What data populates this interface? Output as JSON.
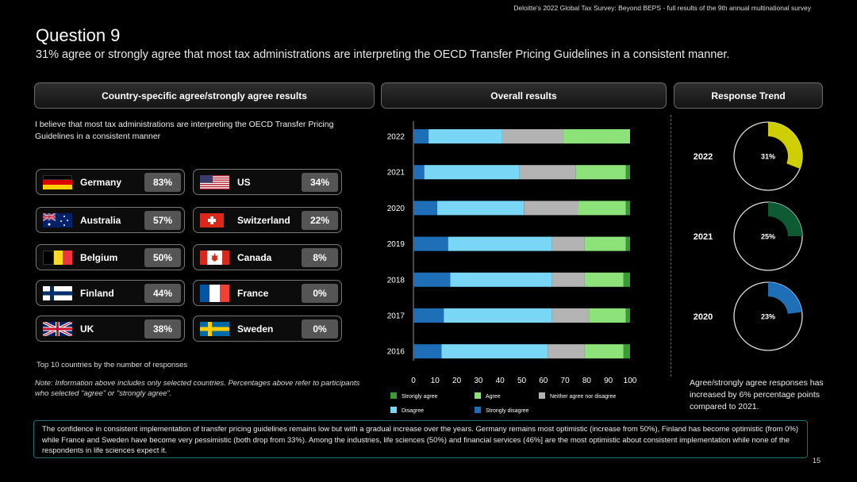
{
  "header_source": "Deloitte's 2022 Global Tax Survey: Beyond BEPS  - full results of the 9th annual multinational survey",
  "title": "Question 9",
  "subtitle": "31% agree or strongly agree that most tax administrations are interpreting the OECD Transfer Pricing Guidelines in a consistent manner.",
  "sections": {
    "country": "Country-specific agree/strongly agree results",
    "overall": "Overall results",
    "trend": "Response Trend"
  },
  "statement": "I believe that most tax administrations are interpreting the OECD Transfer Pricing Guidelines in a consistent manner",
  "countries": [
    {
      "name": "Germany",
      "pct": "83%",
      "flag": "germany-flag-icon"
    },
    {
      "name": "US",
      "pct": "34%",
      "flag": "us-flag-icon"
    },
    {
      "name": "Australia",
      "pct": "57%",
      "flag": "australia-flag-icon"
    },
    {
      "name": "Switzerland",
      "pct": "22%",
      "flag": "switzerland-flag-icon"
    },
    {
      "name": "Belgium",
      "pct": "50%",
      "flag": "belgium-flag-icon"
    },
    {
      "name": "Canada",
      "pct": "8%",
      "flag": "canada-flag-icon"
    },
    {
      "name": "Finland",
      "pct": "44%",
      "flag": "finland-flag-icon"
    },
    {
      "name": "France",
      "pct": "0%",
      "flag": "france-flag-icon"
    },
    {
      "name": "UK",
      "pct": "38%",
      "flag": "uk-flag-icon"
    },
    {
      "name": "Sweden",
      "pct": "0%",
      "flag": "sweden-flag-icon"
    }
  ],
  "footnote_top10": "Top 10 countries by the number of responses",
  "footnote_note": "Note: Information above includes only selected countries. Percentages above refer to participants who selected \"agree\" or \"strongly agree\".",
  "chart_data": [
    {
      "type": "bar",
      "orientation": "horizontal-stacked",
      "categories": [
        "2022",
        "2021",
        "2020",
        "2019",
        "2018",
        "2017",
        "2016"
      ],
      "xlim": [
        0,
        100
      ],
      "xticks": [
        "0",
        "10",
        "20",
        "30",
        "40",
        "50",
        "60",
        "70",
        "80",
        "90",
        "100"
      ],
      "legend_position": "bottom",
      "series": [
        {
          "name": "Strongly disagree",
          "color": "#1f6fb8",
          "values": [
            7,
            5,
            11,
            16,
            17,
            14,
            13
          ]
        },
        {
          "name": "Disagree",
          "color": "#7ad6f5",
          "values": [
            34,
            44,
            40,
            48,
            47,
            50,
            49
          ]
        },
        {
          "name": "Neither agree nor disagree",
          "color": "#b3b3b3",
          "values": [
            28,
            26,
            25,
            15,
            15,
            17,
            17
          ]
        },
        {
          "name": "Agree",
          "color": "#8de27a",
          "values": [
            31,
            23,
            22,
            19,
            18,
            17,
            18
          ]
        },
        {
          "name": "Strongly agree",
          "color": "#3a9b35",
          "values": [
            0,
            2,
            2,
            2,
            3,
            2,
            3
          ]
        }
      ],
      "legend_order": [
        "Strongly agree",
        "Agree",
        "Neither agree nor disagree",
        "Disagree",
        "Strongly disagree"
      ]
    },
    {
      "type": "pie",
      "title": "Response Trend",
      "items": [
        {
          "year": "2022",
          "value": 31,
          "label": "31%",
          "color": "#cfcf00"
        },
        {
          "year": "2021",
          "value": 25,
          "label": "25%",
          "color": "#0e5a32"
        },
        {
          "year": "2020",
          "value": 23,
          "label": "23%",
          "color": "#1f6fb8"
        }
      ]
    }
  ],
  "trend_note": "Agree/strongly agree responses has increased by 6% percentage points compared to 2021.",
  "bottom_text": "The confidence in consistent implementation of transfer pricing guidelines remains low but with a gradual increase over the years. Germany remains most optimistic (increase from 50%), Finland has become optimistic (from 0%) while France and Sweden have become very pessimistic (both drop from 33%). Among the industries, life sciences (50%) and financial services (46%] are the most optimistic about consistent implementation while none of the respondents in life sciences expect it.",
  "page_number": "15"
}
